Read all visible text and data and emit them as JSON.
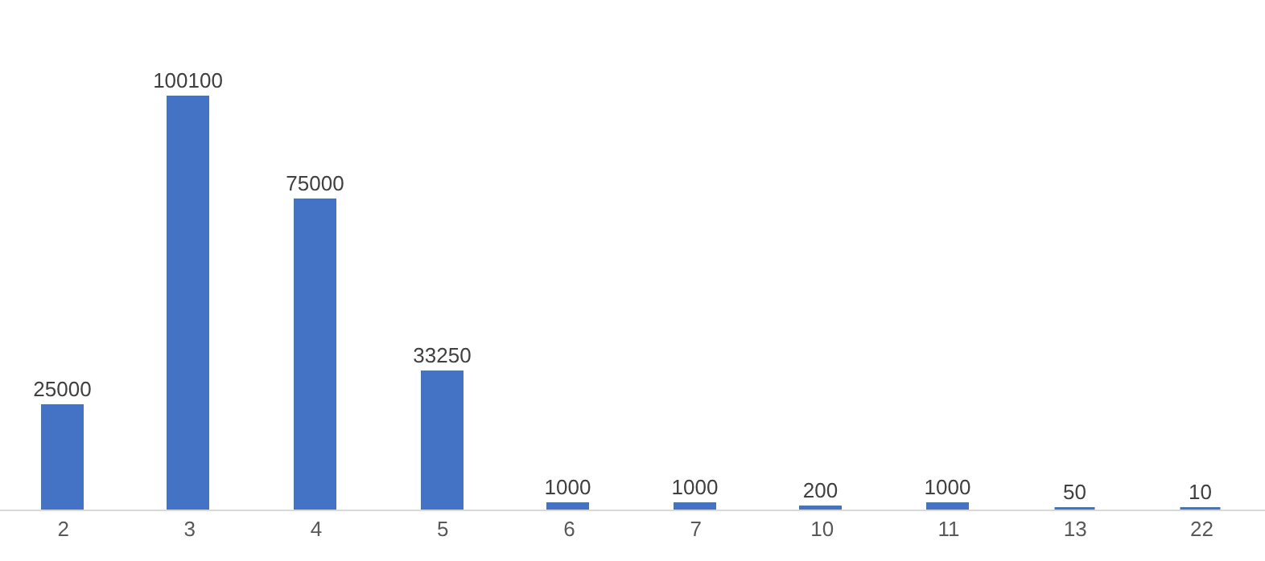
{
  "chart_data": {
    "type": "bar",
    "categories": [
      "2",
      "3",
      "4",
      "5",
      "6",
      "7",
      "10",
      "11",
      "13",
      "22"
    ],
    "values": [
      25000,
      100100,
      75000,
      33250,
      1000,
      1000,
      200,
      1000,
      50,
      10
    ],
    "color": "#4472c4",
    "data_labels": true,
    "legend": false
  }
}
